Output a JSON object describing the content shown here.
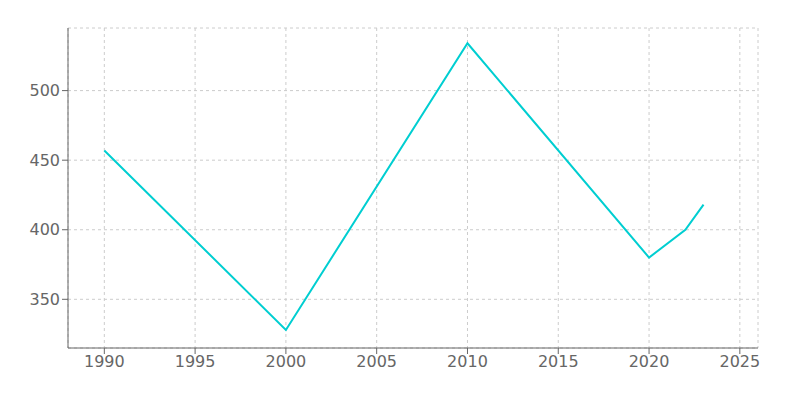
{
  "chart_data": {
    "type": "line",
    "x": [
      1990,
      2000,
      2010,
      2020,
      2022,
      2023
    ],
    "values": [
      457,
      328,
      534,
      380,
      400,
      418
    ],
    "color": "#00CED1",
    "xlim": [
      1988,
      2026
    ],
    "xticks": [
      1990,
      1995,
      2000,
      2005,
      2010,
      2015,
      2020,
      2025
    ],
    "ylim": [
      315,
      545
    ],
    "yticks": [
      350,
      400,
      450,
      500
    ],
    "grid": true
  }
}
